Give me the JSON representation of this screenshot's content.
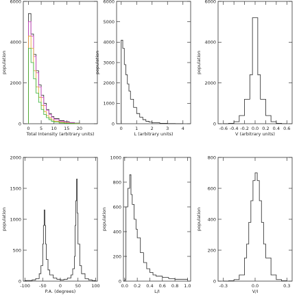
{
  "chart_data": [
    {
      "type": "line",
      "xlabel": "Total Intensity (arbitrary units)",
      "ylabel": "population",
      "xlim": [
        -2,
        27
      ],
      "ylim": [
        0,
        6000
      ],
      "xticks": [
        0,
        5,
        10,
        15,
        20
      ],
      "xtick_labels": [
        "0",
        "5",
        "10",
        "15",
        "20"
      ],
      "yticks": [
        0,
        2000,
        4000,
        6000
      ],
      "ytick_labels": [
        "0",
        "2000",
        "4000",
        "6000"
      ],
      "series": [
        {
          "color": "#222222",
          "x": [
            0,
            1,
            2,
            3,
            4,
            5,
            6,
            7,
            8,
            9,
            10,
            12,
            14,
            16,
            18,
            20
          ],
          "y": [
            5400,
            4400,
            3400,
            2600,
            1900,
            1400,
            1000,
            700,
            500,
            350,
            250,
            150,
            100,
            60,
            30,
            10
          ]
        },
        {
          "color": "#d040c8",
          "x": [
            0,
            1,
            2,
            3,
            4,
            5,
            6,
            7,
            8,
            9,
            10,
            12,
            14,
            16,
            18,
            20
          ],
          "y": [
            5000,
            4300,
            3300,
            2500,
            1800,
            1300,
            900,
            650,
            450,
            300,
            200,
            120,
            80,
            50,
            20,
            5
          ]
        },
        {
          "color": "#e0a020",
          "x": [
            0,
            1,
            2,
            3,
            4,
            5,
            6,
            7,
            8,
            9,
            10,
            12,
            14,
            16,
            18,
            20
          ],
          "y": [
            4300,
            3700,
            2600,
            1800,
            1300,
            900,
            600,
            400,
            280,
            180,
            120,
            70,
            40,
            20,
            10,
            5
          ]
        },
        {
          "color": "#30b030",
          "x": [
            0,
            1,
            2,
            3,
            4,
            5,
            6,
            7,
            8,
            9,
            10,
            12,
            14,
            16,
            18,
            20
          ],
          "y": [
            3700,
            3000,
            2200,
            1500,
            1050,
            700,
            450,
            300,
            200,
            120,
            80,
            40,
            20,
            10,
            5,
            2
          ]
        }
      ]
    },
    {
      "type": "line",
      "xlabel": "L (arbitrary units)",
      "ylabel": "population",
      "xlim": [
        -0.3,
        4.5
      ],
      "ylim": [
        0,
        6000
      ],
      "xticks": [
        0,
        1,
        2,
        3,
        4
      ],
      "xtick_labels": [
        "0",
        "1",
        "2",
        "3",
        "4"
      ],
      "yticks": [
        0,
        1000,
        2000,
        3000,
        4000,
        5000,
        6000
      ],
      "ytick_labels": [
        "0",
        "1000",
        "2000",
        "3000",
        "4000",
        "5000",
        "6000"
      ],
      "series": [
        {
          "color": "#222222",
          "x": [
            0,
            0.1,
            0.2,
            0.3,
            0.4,
            0.5,
            0.6,
            0.8,
            1.0,
            1.2,
            1.4,
            1.6,
            1.8,
            2.0,
            2.5,
            3.0,
            3.5,
            4.0
          ],
          "y": [
            4100,
            3700,
            2900,
            2400,
            1950,
            1600,
            1200,
            800,
            500,
            320,
            200,
            120,
            80,
            50,
            20,
            8,
            3,
            0
          ]
        }
      ]
    },
    {
      "type": "line",
      "xlabel": "V (arbitrary units)",
      "ylabel": "population",
      "xlim": [
        -0.7,
        0.7
      ],
      "ylim": [
        0,
        6000
      ],
      "xticks": [
        -0.6,
        -0.4,
        -0.2,
        0.0,
        0.2,
        0.4,
        0.6
      ],
      "xtick_labels": [
        "-0.6",
        "-0.4",
        "-0.2",
        "0.0",
        "0.2",
        "0.4",
        "0.6"
      ],
      "yticks": [
        0,
        2000,
        4000,
        6000
      ],
      "ytick_labels": [
        "0",
        "2000",
        "4000",
        "6000"
      ],
      "series": [
        {
          "color": "#222222",
          "x": [
            -0.6,
            -0.5,
            -0.4,
            -0.3,
            -0.2,
            -0.1,
            -0.05,
            0.0,
            0.05,
            0.1,
            0.2,
            0.3,
            0.4,
            0.5,
            0.6
          ],
          "y": [
            0,
            20,
            100,
            400,
            1200,
            2400,
            5200,
            5200,
            2400,
            1200,
            400,
            100,
            20,
            5,
            0
          ]
        }
      ]
    },
    {
      "type": "line",
      "xlabel": "P.A. (degrees)",
      "ylabel": "population",
      "xlim": [
        -105,
        105
      ],
      "ylim": [
        0,
        2000
      ],
      "xticks": [
        -100,
        -50,
        0,
        50,
        100
      ],
      "xtick_labels": [
        "-100",
        "-50",
        "0",
        "50",
        "100"
      ],
      "yticks": [
        0,
        500,
        1000,
        1500,
        2000
      ],
      "ytick_labels": [
        "0",
        "500",
        "1000",
        "1500",
        "2000"
      ],
      "series": [
        {
          "color": "#222222",
          "x": [
            -100,
            -90,
            -80,
            -70,
            -60,
            -55,
            -50,
            -48,
            -46,
            -44,
            -42,
            -40,
            -35,
            -30,
            -20,
            -10,
            0,
            10,
            20,
            30,
            35,
            40,
            42,
            44,
            46,
            48,
            50,
            55,
            60,
            70,
            80,
            90,
            100
          ],
          "y": [
            10,
            10,
            20,
            40,
            120,
            250,
            600,
            900,
            1150,
            900,
            600,
            350,
            180,
            100,
            50,
            30,
            20,
            30,
            50,
            100,
            200,
            400,
            900,
            1300,
            1650,
            1100,
            600,
            250,
            120,
            40,
            20,
            10,
            10
          ]
        }
      ]
    },
    {
      "type": "line",
      "xlabel": "L/I",
      "ylabel": "population",
      "xlim": [
        -0.02,
        1.05
      ],
      "ylim": [
        0,
        1000
      ],
      "xticks": [
        0.0,
        0.2,
        0.4,
        0.6,
        0.8,
        1.0
      ],
      "xtick_labels": [
        "0.0",
        "0.2",
        "0.4",
        "0.6",
        "0.8",
        "1.0"
      ],
      "yticks": [
        0,
        200,
        400,
        600,
        800,
        1000
      ],
      "ytick_labels": [
        "0",
        "200",
        "400",
        "600",
        "800",
        "1000"
      ],
      "series": [
        {
          "color": "#222222",
          "x": [
            0.0,
            0.02,
            0.05,
            0.08,
            0.1,
            0.12,
            0.15,
            0.18,
            0.2,
            0.25,
            0.3,
            0.35,
            0.4,
            0.45,
            0.5,
            0.6,
            0.7,
            0.8,
            0.9,
            1.0
          ],
          "y": [
            10,
            600,
            750,
            860,
            700,
            620,
            500,
            420,
            350,
            230,
            150,
            100,
            70,
            50,
            40,
            30,
            20,
            15,
            15,
            10
          ]
        }
      ]
    },
    {
      "type": "line",
      "xlabel": "V/I",
      "ylabel": "population",
      "xlim": [
        -0.35,
        0.35
      ],
      "ylim": [
        0,
        800
      ],
      "xticks": [
        -0.3,
        0.0,
        0.3
      ],
      "xtick_labels": [
        "-0.3",
        "0.0",
        "0.3"
      ],
      "yticks": [
        0,
        200,
        400,
        600,
        800
      ],
      "ytick_labels": [
        "0",
        "200",
        "400",
        "600",
        "800"
      ],
      "series": [
        {
          "color": "#222222",
          "x": [
            -0.3,
            -0.25,
            -0.2,
            -0.15,
            -0.1,
            -0.08,
            -0.06,
            -0.04,
            -0.02,
            0.0,
            0.02,
            0.04,
            0.06,
            0.08,
            0.1,
            0.15,
            0.2,
            0.25,
            0.3
          ],
          "y": [
            0,
            2,
            10,
            40,
            150,
            240,
            380,
            520,
            650,
            700,
            650,
            520,
            380,
            240,
            150,
            40,
            10,
            2,
            0
          ]
        }
      ]
    }
  ]
}
